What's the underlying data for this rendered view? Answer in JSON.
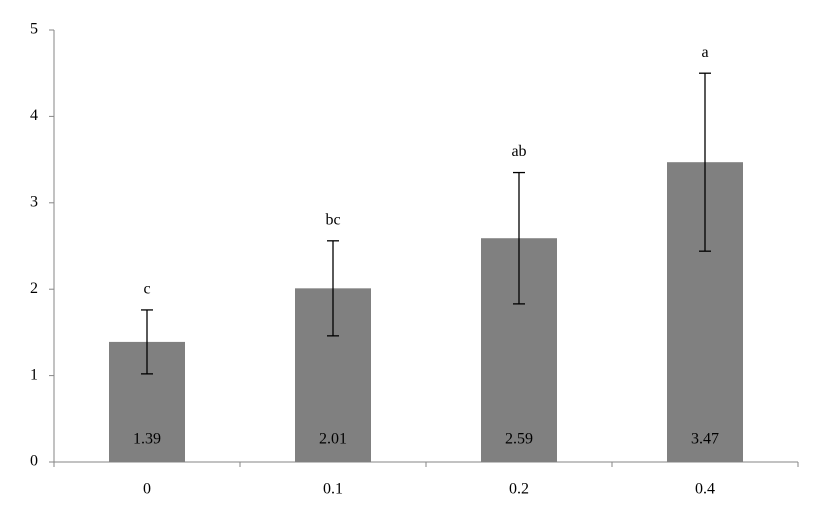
{
  "chart_data": {
    "type": "bar",
    "categories": [
      "0",
      "0.1",
      "0.2",
      "0.4"
    ],
    "values": [
      1.39,
      2.01,
      2.59,
      3.47
    ],
    "errors": [
      0.37,
      0.55,
      0.76,
      1.03
    ],
    "annotations": [
      "c",
      "bc",
      "ab",
      "a"
    ],
    "color": "#808080",
    "error_color": "#000000",
    "ylim": [
      0,
      5
    ],
    "yticks": [
      0,
      1,
      2,
      3,
      4,
      5
    ],
    "grid": false
  }
}
